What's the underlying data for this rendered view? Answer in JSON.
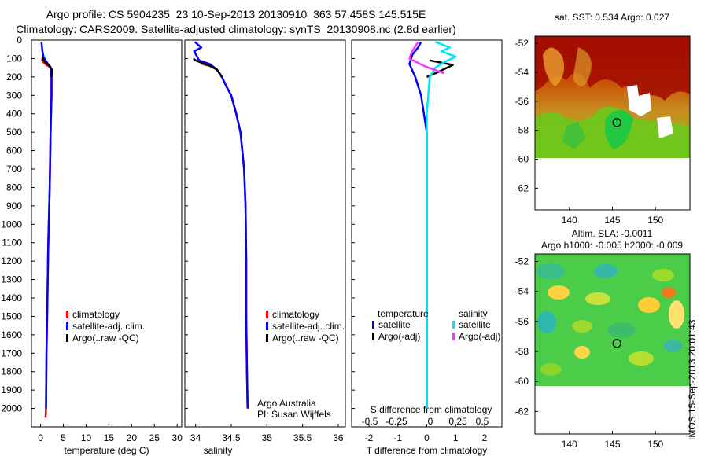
{
  "header": {
    "title_line1": "Argo profile: CS 5904235_23 10-Sep-2013 20130910_363 57.458S 145.515E",
    "title_line2": "Climatology: CARS2009. Satellite-adjusted climatology: synTS_20130908.nc (2.8d earlier)"
  },
  "colors": {
    "climatology": "#ff0000",
    "satellite": "#0000ff",
    "argo": "#000000",
    "salinity_satellite": "#00e5ff",
    "salinity_argo": "#ff33ff"
  },
  "chart_data": [
    {
      "type": "line",
      "id": "temperature",
      "xlabel": "temperature (deg C)",
      "ylabel": "",
      "xlim": [
        -2,
        31
      ],
      "ylim": [
        2100,
        0
      ],
      "xticks": [
        0,
        5,
        10,
        15,
        20,
        25,
        30
      ],
      "yticks": [
        0,
        100,
        200,
        300,
        400,
        500,
        600,
        700,
        800,
        900,
        1000,
        1100,
        1200,
        1300,
        1400,
        1500,
        1600,
        1700,
        1800,
        1900,
        2000
      ],
      "legend": [
        "climatology",
        "satellite-adj. clim.",
        "Argo(..raw -QC)"
      ],
      "series": [
        {
          "name": "climatology",
          "color": "#ff0000",
          "x": [
            0.3,
            0.4,
            0.8,
            1.3,
            2.0,
            2.3,
            2.4,
            2.4,
            2.2,
            2.0,
            1.7,
            1.5,
            1.3,
            1.2,
            1.1
          ],
          "y": [
            100,
            110,
            125,
            135,
            145,
            160,
            200,
            300,
            500,
            800,
            1100,
            1400,
            1700,
            2000,
            2050
          ]
        },
        {
          "name": "satellite-adj. clim.",
          "color": "#0000ff",
          "x": [
            0.2,
            0.4,
            0.7,
            1.1,
            1.5,
            2.1,
            2.3,
            2.4,
            2.4,
            2.2,
            2.0,
            1.7,
            1.5,
            1.3,
            1.2
          ],
          "y": [
            10,
            60,
            95,
            110,
            125,
            145,
            165,
            200,
            300,
            500,
            800,
            1100,
            1400,
            1700,
            2000
          ]
        },
        {
          "name": "Argo(..raw -QC)",
          "color": "#000000",
          "x": [
            0.4,
            0.6,
            1.0,
            2.0,
            2.5,
            2.5,
            2.4
          ],
          "y": [
            90,
            105,
            120,
            140,
            160,
            180,
            200
          ]
        }
      ]
    },
    {
      "type": "line",
      "id": "salinity",
      "xlabel": "salinity",
      "ylabel": "",
      "xlim": [
        33.85,
        36.1
      ],
      "ylim": [
        2100,
        0
      ],
      "xticks": [
        34,
        34.5,
        35,
        35.5,
        36
      ],
      "legend": [
        "climatology",
        "satellite-adj. clim.",
        "Argo(..raw -QC)"
      ],
      "annotation": [
        "Argo Australia",
        "PI: Susan Wijffels"
      ],
      "series": [
        {
          "name": "climatology",
          "color": "#ff0000",
          "x": [
            34.08,
            34.1,
            34.2,
            34.3,
            34.37,
            34.43,
            34.5,
            34.57,
            34.63,
            34.68,
            34.7,
            34.71,
            34.71,
            34.72,
            34.73
          ],
          "y": [
            125,
            130,
            140,
            160,
            200,
            250,
            300,
            400,
            500,
            700,
            900,
            1200,
            1500,
            1800,
            2000
          ]
        },
        {
          "name": "satellite-adj. clim.",
          "color": "#0000ff",
          "x": [
            33.99,
            34.08,
            33.98,
            34.05,
            34.2,
            34.3,
            34.37,
            34.43,
            34.5,
            34.57,
            34.63,
            34.68,
            34.7,
            34.71,
            34.71,
            34.72,
            34.73
          ],
          "y": [
            10,
            40,
            60,
            110,
            130,
            160,
            200,
            250,
            300,
            400,
            500,
            700,
            900,
            1200,
            1500,
            1800,
            2000
          ]
        },
        {
          "name": "Argo(..raw -QC)",
          "color": "#000000",
          "x": [
            33.97,
            34.0,
            34.1,
            34.2,
            34.3,
            34.37
          ],
          "y": [
            100,
            110,
            125,
            140,
            160,
            200
          ]
        }
      ]
    },
    {
      "type": "line",
      "id": "differences",
      "xlabel": "T difference from climatology",
      "xlabel_top": "S difference from climatology",
      "xlim": [
        -2.6,
        2.6
      ],
      "ylim": [
        2100,
        0
      ],
      "xticks": [
        -2,
        -1,
        0,
        1,
        2
      ],
      "xtick_labels_top": [
        "-0.5",
        "-0.25",
        "0",
        "0.25",
        "0.5"
      ],
      "legend": [
        "temperature",
        "satellite",
        "Argo(-adj)",
        "salinity",
        "satellite",
        "Argo(-adj)"
      ],
      "series": [
        {
          "name": "temperature satellite",
          "color": "#0000ff",
          "x": [
            -0.2,
            -0.3,
            -0.5,
            -0.6,
            -0.4,
            -0.2,
            0.0,
            0.0,
            0.0,
            0.0
          ],
          "y": [
            10,
            40,
            80,
            130,
            200,
            300,
            500,
            800,
            1300,
            2000
          ]
        },
        {
          "name": "temperature Argo(-adj)",
          "color": "#000000",
          "x": [
            0.1,
            0.9,
            0.3,
            0.0
          ],
          "y": [
            110,
            135,
            180,
            200
          ]
        },
        {
          "name": "salinity satellite",
          "color": "#00e5ff",
          "x": [
            0.3,
            0.8,
            0.5,
            1.0,
            0.6,
            0.3,
            0.1,
            0.0,
            0.0,
            0.0
          ],
          "y": [
            10,
            40,
            60,
            90,
            120,
            150,
            200,
            400,
            1000,
            2000
          ]
        },
        {
          "name": "salinity Argo(-adj)",
          "color": "#ff33ff",
          "x": [
            -0.3,
            -0.5,
            -0.6,
            -0.1,
            0.6
          ],
          "y": [
            10,
            60,
            100,
            140,
            180
          ]
        }
      ]
    },
    {
      "type": "heatmap",
      "id": "sst-map",
      "title": "sat. SST: 0.534 Argo: 0.027",
      "xlim": [
        136,
        154
      ],
      "ylim": [
        -63.5,
        -51.5
      ],
      "xticks": [
        140,
        145,
        150
      ],
      "yticks": [
        -52,
        -54,
        -56,
        -58,
        -60,
        -62
      ],
      "marker": {
        "lon": 145.515,
        "lat": -57.458
      }
    },
    {
      "type": "heatmap",
      "id": "sla-map",
      "title": "Altim. SLA: -0.0011",
      "subtitle": "Argo h1000: -0.005 h2000: -0.009",
      "xlim": [
        136,
        154
      ],
      "ylim": [
        -63.5,
        -51.5
      ],
      "xticks": [
        140,
        145,
        150
      ],
      "yticks": [
        -52,
        -54,
        -56,
        -58,
        -60,
        -62
      ],
      "marker": {
        "lon": 145.515,
        "lat": -57.458
      }
    }
  ],
  "footer": {
    "stamp": "IMOS 15-Sep-2013 20:01:43"
  }
}
